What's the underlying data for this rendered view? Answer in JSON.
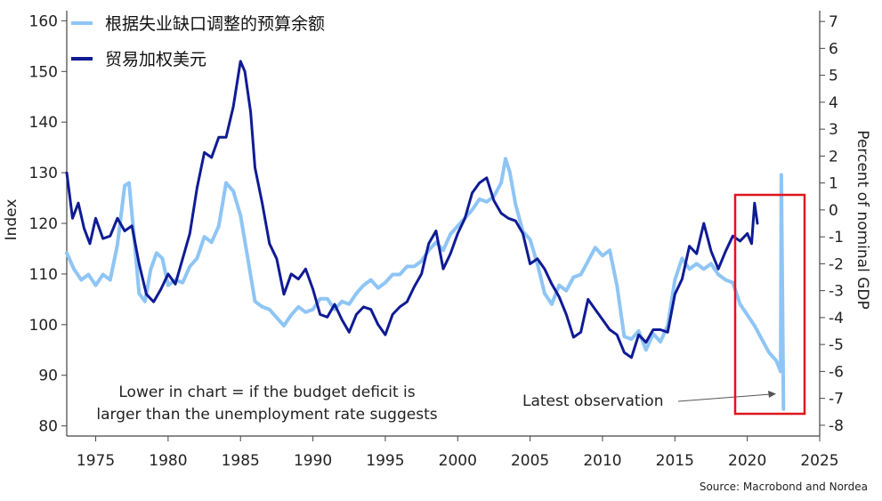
{
  "chart_data": {
    "type": "line",
    "legend": {
      "placement": "top-left"
    },
    "series": [
      {
        "name": "根据失业缺口调整的预算余额",
        "axis": "right",
        "color": "#8ec5f5",
        "points": [
          [
            1973.0,
            -1.6
          ],
          [
            1973.5,
            -2.2
          ],
          [
            1974.0,
            -2.6
          ],
          [
            1974.5,
            -2.4
          ],
          [
            1975.0,
            -2.8
          ],
          [
            1975.5,
            -2.4
          ],
          [
            1976.0,
            -2.6
          ],
          [
            1976.5,
            -1.3
          ],
          [
            1977.0,
            0.9
          ],
          [
            1977.3,
            1.0
          ],
          [
            1977.6,
            -0.7
          ],
          [
            1978.0,
            -3.1
          ],
          [
            1978.4,
            -3.4
          ],
          [
            1978.8,
            -2.2
          ],
          [
            1979.2,
            -1.6
          ],
          [
            1979.6,
            -1.8
          ],
          [
            1980.0,
            -2.8
          ],
          [
            1980.5,
            -2.6
          ],
          [
            1981.0,
            -2.7
          ],
          [
            1981.5,
            -2.1
          ],
          [
            1982.0,
            -1.8
          ],
          [
            1982.5,
            -1.0
          ],
          [
            1983.0,
            -1.2
          ],
          [
            1983.5,
            -0.6
          ],
          [
            1984.0,
            1.0
          ],
          [
            1984.5,
            0.7
          ],
          [
            1985.0,
            -0.2
          ],
          [
            1985.5,
            -1.8
          ],
          [
            1986.0,
            -3.4
          ],
          [
            1986.5,
            -3.6
          ],
          [
            1987.0,
            -3.7
          ],
          [
            1987.5,
            -4.0
          ],
          [
            1988.0,
            -4.3
          ],
          [
            1988.5,
            -3.9
          ],
          [
            1989.0,
            -3.6
          ],
          [
            1989.5,
            -3.8
          ],
          [
            1990.0,
            -3.7
          ],
          [
            1990.5,
            -3.3
          ],
          [
            1991.0,
            -3.3
          ],
          [
            1991.5,
            -3.7
          ],
          [
            1992.0,
            -3.4
          ],
          [
            1992.5,
            -3.5
          ],
          [
            1993.0,
            -3.1
          ],
          [
            1993.5,
            -2.8
          ],
          [
            1994.0,
            -2.6
          ],
          [
            1994.5,
            -2.9
          ],
          [
            1995.0,
            -2.7
          ],
          [
            1995.5,
            -2.4
          ],
          [
            1996.0,
            -2.4
          ],
          [
            1996.5,
            -2.1
          ],
          [
            1997.0,
            -2.1
          ],
          [
            1997.5,
            -1.9
          ],
          [
            1998.0,
            -1.5
          ],
          [
            1998.5,
            -1.2
          ],
          [
            1999.0,
            -1.5
          ],
          [
            1999.5,
            -0.9
          ],
          [
            2000.0,
            -0.6
          ],
          [
            2000.5,
            -0.3
          ],
          [
            2001.0,
            0.0
          ],
          [
            2001.5,
            0.4
          ],
          [
            2002.0,
            0.3
          ],
          [
            2002.5,
            0.5
          ],
          [
            2003.0,
            1.0
          ],
          [
            2003.3,
            1.9
          ],
          [
            2003.6,
            1.4
          ],
          [
            2004.0,
            0.2
          ],
          [
            2004.5,
            -0.8
          ],
          [
            2005.0,
            -1.1
          ],
          [
            2005.5,
            -2.0
          ],
          [
            2006.0,
            -3.1
          ],
          [
            2006.5,
            -3.5
          ],
          [
            2007.0,
            -2.8
          ],
          [
            2007.5,
            -3.0
          ],
          [
            2008.0,
            -2.5
          ],
          [
            2008.5,
            -2.4
          ],
          [
            2009.0,
            -1.9
          ],
          [
            2009.5,
            -1.4
          ],
          [
            2010.0,
            -1.7
          ],
          [
            2010.5,
            -1.5
          ],
          [
            2011.0,
            -2.8
          ],
          [
            2011.5,
            -4.7
          ],
          [
            2012.0,
            -4.8
          ],
          [
            2012.5,
            -4.5
          ],
          [
            2013.0,
            -5.2
          ],
          [
            2013.5,
            -4.6
          ],
          [
            2014.0,
            -4.9
          ],
          [
            2014.5,
            -4.3
          ],
          [
            2015.0,
            -2.6
          ],
          [
            2015.5,
            -1.8
          ],
          [
            2016.0,
            -2.2
          ],
          [
            2016.5,
            -2.0
          ],
          [
            2017.0,
            -2.2
          ],
          [
            2017.5,
            -2.0
          ],
          [
            2018.0,
            -2.4
          ],
          [
            2018.5,
            -2.6
          ],
          [
            2019.0,
            -2.7
          ],
          [
            2019.5,
            -3.5
          ],
          [
            2020.0,
            -3.9
          ],
          [
            2020.5,
            -4.3
          ],
          [
            2021.0,
            -4.8
          ],
          [
            2021.5,
            -5.3
          ],
          [
            2022.0,
            -5.6
          ],
          [
            2022.3,
            -6.0
          ],
          [
            2022.35,
            1.3
          ],
          [
            2022.5,
            -7.4
          ]
        ]
      },
      {
        "name": "贸易加权美元",
        "axis": "left",
        "color": "#0f1b94",
        "points": [
          [
            1973.0,
            130.0
          ],
          [
            1973.4,
            121.0
          ],
          [
            1973.8,
            124.0
          ],
          [
            1974.2,
            119.0
          ],
          [
            1974.6,
            116.0
          ],
          [
            1975.0,
            121.0
          ],
          [
            1975.5,
            117.0
          ],
          [
            1976.0,
            117.5
          ],
          [
            1976.5,
            121.0
          ],
          [
            1977.0,
            118.5
          ],
          [
            1977.5,
            119.5
          ],
          [
            1978.0,
            112.0
          ],
          [
            1978.5,
            106.0
          ],
          [
            1979.0,
            104.5
          ],
          [
            1979.5,
            107.0
          ],
          [
            1980.0,
            110.0
          ],
          [
            1980.5,
            108.0
          ],
          [
            1981.0,
            113.0
          ],
          [
            1981.5,
            118.0
          ],
          [
            1982.0,
            127.0
          ],
          [
            1982.5,
            134.0
          ],
          [
            1983.0,
            133.0
          ],
          [
            1983.5,
            137.0
          ],
          [
            1984.0,
            137.0
          ],
          [
            1984.5,
            143.0
          ],
          [
            1985.0,
            152.0
          ],
          [
            1985.3,
            150.0
          ],
          [
            1985.7,
            142.0
          ],
          [
            1986.0,
            131.0
          ],
          [
            1986.5,
            124.0
          ],
          [
            1987.0,
            116.0
          ],
          [
            1987.5,
            113.0
          ],
          [
            1988.0,
            106.0
          ],
          [
            1988.5,
            110.0
          ],
          [
            1989.0,
            109.0
          ],
          [
            1989.5,
            111.0
          ],
          [
            1990.0,
            107.0
          ],
          [
            1990.5,
            102.0
          ],
          [
            1991.0,
            101.5
          ],
          [
            1991.5,
            104.0
          ],
          [
            1992.0,
            101.0
          ],
          [
            1992.5,
            98.5
          ],
          [
            1993.0,
            102.0
          ],
          [
            1993.5,
            103.5
          ],
          [
            1994.0,
            103.0
          ],
          [
            1994.5,
            100.0
          ],
          [
            1995.0,
            98.0
          ],
          [
            1995.5,
            102.0
          ],
          [
            1996.0,
            103.5
          ],
          [
            1996.5,
            104.5
          ],
          [
            1997.0,
            107.5
          ],
          [
            1997.5,
            110.0
          ],
          [
            1998.0,
            116.0
          ],
          [
            1998.5,
            118.5
          ],
          [
            1999.0,
            111.0
          ],
          [
            1999.5,
            114.0
          ],
          [
            2000.0,
            118.0
          ],
          [
            2000.5,
            121.0
          ],
          [
            2001.0,
            126.0
          ],
          [
            2001.5,
            128.0
          ],
          [
            2002.0,
            129.0
          ],
          [
            2002.5,
            124.5
          ],
          [
            2003.0,
            122.0
          ],
          [
            2003.5,
            121.0
          ],
          [
            2004.0,
            120.5
          ],
          [
            2004.5,
            118.0
          ],
          [
            2005.0,
            112.0
          ],
          [
            2005.5,
            113.0
          ],
          [
            2006.0,
            111.0
          ],
          [
            2006.5,
            108.0
          ],
          [
            2007.0,
            105.5
          ],
          [
            2007.5,
            102.0
          ],
          [
            2008.0,
            97.5
          ],
          [
            2008.5,
            98.5
          ],
          [
            2009.0,
            105.0
          ],
          [
            2009.5,
            103.0
          ],
          [
            2010.0,
            101.0
          ],
          [
            2010.5,
            99.0
          ],
          [
            2011.0,
            98.0
          ],
          [
            2011.5,
            94.5
          ],
          [
            2012.0,
            93.5
          ],
          [
            2012.5,
            98.0
          ],
          [
            2013.0,
            96.5
          ],
          [
            2013.5,
            99.0
          ],
          [
            2014.0,
            99.0
          ],
          [
            2014.5,
            98.5
          ],
          [
            2015.0,
            106.0
          ],
          [
            2015.5,
            109.0
          ],
          [
            2016.0,
            115.5
          ],
          [
            2016.5,
            114.0
          ],
          [
            2017.0,
            120.0
          ],
          [
            2017.5,
            114.5
          ],
          [
            2018.0,
            111.0
          ],
          [
            2018.5,
            114.5
          ],
          [
            2019.0,
            117.5
          ],
          [
            2019.5,
            116.5
          ],
          [
            2020.0,
            118.0
          ],
          [
            2020.3,
            116.0
          ],
          [
            2020.5,
            124.0
          ],
          [
            2020.7,
            120.0
          ]
        ]
      }
    ],
    "x_axis": {
      "min": 1973,
      "max": 2025,
      "ticks": [
        1975,
        1980,
        1985,
        1990,
        1995,
        2000,
        2005,
        2010,
        2015,
        2020,
        2025
      ]
    },
    "y_left": {
      "label": "Index",
      "min": 78,
      "max": 162,
      "ticks": [
        80,
        90,
        100,
        110,
        120,
        130,
        140,
        150,
        160
      ]
    },
    "y_right": {
      "label": "Percent of nominal GDP",
      "min": -8.4,
      "max": 7.4,
      "ticks": [
        -8,
        -7,
        -6,
        -5,
        -4,
        -3,
        -2,
        -1,
        0,
        1,
        2,
        3,
        4,
        5,
        6,
        7
      ]
    },
    "grid": false,
    "annotations": {
      "note_line1": "Lower in chart = if the budget deficit is",
      "note_line2": "larger than the unemployment rate suggests",
      "latest": "Latest observation",
      "highlight_box_color": "#e0141e"
    },
    "source": "Source: Macrobond and Nordea"
  }
}
